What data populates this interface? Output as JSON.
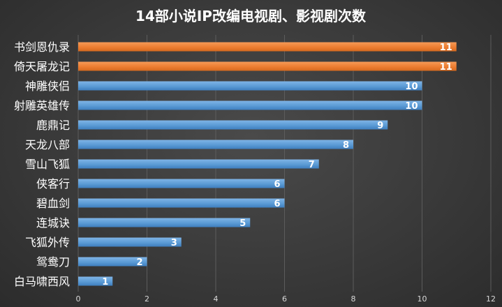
{
  "chart_data": {
    "type": "bar",
    "orientation": "horizontal",
    "title": "14部小说IP改编电视剧、影视剧次数",
    "categories": [
      "书剑恩仇录",
      "倚天屠龙记",
      "神雕侠侣",
      "射雕英雄传",
      "鹿鼎记",
      "天龙八部",
      "雪山飞狐",
      "侠客行",
      "碧血剑",
      "连城诀",
      "飞狐外传",
      "鸳鸯刀",
      "白马啸西风"
    ],
    "values": [
      11,
      11,
      10,
      10,
      9,
      8,
      7,
      6,
      6,
      5,
      3,
      2,
      1
    ],
    "bar_colors": [
      "#ed7d31",
      "#ed7d31",
      "#5b9bd5",
      "#5b9bd5",
      "#5b9bd5",
      "#5b9bd5",
      "#5b9bd5",
      "#5b9bd5",
      "#5b9bd5",
      "#5b9bd5",
      "#5b9bd5",
      "#5b9bd5",
      "#5b9bd5"
    ],
    "xlim": [
      0,
      12
    ],
    "xticks": [
      0,
      2,
      4,
      6,
      8,
      10,
      12
    ],
    "grid": true,
    "data_labels": true
  }
}
